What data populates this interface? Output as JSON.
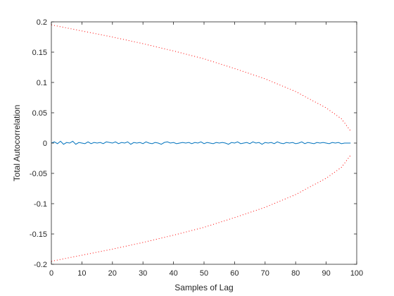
{
  "chart_data": {
    "type": "line",
    "title": "",
    "xlabel": "Samples of Lag",
    "ylabel": "Total Autocorrelation",
    "xlim": [
      0,
      100
    ],
    "ylim": [
      -0.2,
      0.2
    ],
    "x_ticks": [
      0,
      10,
      20,
      30,
      40,
      50,
      60,
      70,
      80,
      90,
      100
    ],
    "y_ticks": [
      -0.2,
      -0.15,
      -0.1,
      -0.05,
      0,
      0.05,
      0.1,
      0.15,
      0.2
    ],
    "x_tick_labels": [
      "0",
      "10",
      "20",
      "30",
      "40",
      "50",
      "60",
      "70",
      "80",
      "90",
      "100"
    ],
    "y_tick_labels": [
      "-0.2",
      "-0.15",
      "-0.1",
      "-0.05",
      "0",
      "0.05",
      "0.1",
      "0.15",
      "0.2"
    ],
    "grid": false,
    "series": [
      {
        "color": "#0072bd",
        "style": "solid",
        "x": [
          0,
          1,
          2,
          3,
          4,
          5,
          6,
          7,
          8,
          9,
          10,
          11,
          12,
          13,
          14,
          15,
          16,
          17,
          18,
          19,
          20,
          21,
          22,
          23,
          24,
          25,
          26,
          27,
          28,
          29,
          30,
          31,
          32,
          33,
          34,
          35,
          36,
          37,
          38,
          39,
          40,
          41,
          42,
          43,
          44,
          45,
          46,
          47,
          48,
          49,
          50,
          51,
          52,
          53,
          54,
          55,
          56,
          57,
          58,
          59,
          60,
          61,
          62,
          63,
          64,
          65,
          66,
          67,
          68,
          69,
          70,
          71,
          72,
          73,
          74,
          75,
          76,
          77,
          78,
          79,
          80,
          81,
          82,
          83,
          84,
          85,
          86,
          87,
          88,
          89,
          90,
          91,
          92,
          93,
          94,
          95,
          96,
          97,
          98
        ],
        "y": [
          0,
          0.002,
          -0.001,
          0.003,
          -0.002,
          0.001,
          0,
          0.003,
          -0.002,
          0.001,
          0,
          -0.001,
          0.002,
          -0.001,
          0.001,
          0,
          0.001,
          -0.001,
          0.002,
          0.001,
          0,
          0.002,
          -0.001,
          0.001,
          0,
          0.002,
          -0.002,
          0.001,
          0,
          0.001,
          -0.001,
          0.002,
          0,
          -0.001,
          0.001,
          0,
          -0.002,
          0.001,
          0.002,
          0,
          0.001,
          -0.001,
          0,
          0.001,
          0,
          0.001,
          -0.001,
          0.001,
          0,
          0.002,
          -0.001,
          0.001,
          0,
          -0.001,
          0.001,
          0,
          0.001,
          0,
          -0.002,
          0.001,
          0,
          0.002,
          -0.001,
          0,
          0.001,
          -0.001,
          0.002,
          0,
          0.001,
          -0.002,
          0.001,
          0,
          0.001,
          -0.001,
          0.002,
          0,
          -0.001,
          0.001,
          0,
          0.001,
          -0.001,
          0,
          0.002,
          -0.001,
          0.001,
          0,
          -0.001,
          0.001,
          0,
          0.001,
          0,
          -0.001,
          0.001,
          0,
          0.001,
          -0.001,
          0,
          0,
          0
        ]
      },
      {
        "color": "#ff0000",
        "style": "dotted",
        "x": [
          0,
          10,
          20,
          30,
          40,
          50,
          60,
          70,
          80,
          90,
          95,
          98
        ],
        "y": [
          0.195,
          0.185,
          0.175,
          0.164,
          0.152,
          0.139,
          0.123,
          0.106,
          0.085,
          0.058,
          0.04,
          0.02
        ]
      },
      {
        "color": "#ff0000",
        "style": "dotted",
        "x": [
          0,
          10,
          20,
          30,
          40,
          50,
          60,
          70,
          80,
          90,
          95,
          98
        ],
        "y": [
          -0.195,
          -0.185,
          -0.175,
          -0.164,
          -0.152,
          -0.139,
          -0.123,
          -0.106,
          -0.085,
          -0.058,
          -0.04,
          -0.02
        ]
      }
    ]
  }
}
